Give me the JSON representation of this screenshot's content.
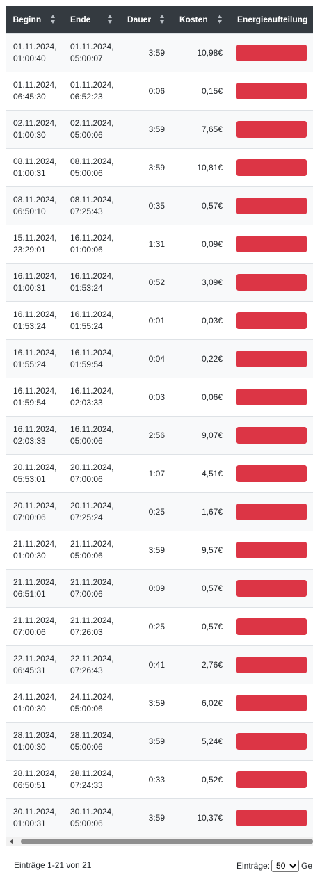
{
  "table": {
    "headers": {
      "beginn": "Beginn",
      "ende": "Ende",
      "dauer": "Dauer",
      "kosten": "Kosten",
      "energie": "Energieaufteilung"
    },
    "rows": [
      {
        "beginn": "01.11.2024, 01:00:40",
        "ende": "01.11.2024, 05:00:07",
        "dauer": "3:59",
        "kosten": "10,98€"
      },
      {
        "beginn": "01.11.2024, 06:45:30",
        "ende": "01.11.2024, 06:52:23",
        "dauer": "0:06",
        "kosten": "0,15€"
      },
      {
        "beginn": "02.11.2024, 01:00:30",
        "ende": "02.11.2024, 05:00:06",
        "dauer": "3:59",
        "kosten": "7,65€"
      },
      {
        "beginn": "08.11.2024, 01:00:31",
        "ende": "08.11.2024, 05:00:06",
        "dauer": "3:59",
        "kosten": "10,81€"
      },
      {
        "beginn": "08.11.2024, 06:50:10",
        "ende": "08.11.2024, 07:25:43",
        "dauer": "0:35",
        "kosten": "0,57€"
      },
      {
        "beginn": "15.11.2024, 23:29:01",
        "ende": "16.11.2024, 01:00:06",
        "dauer": "1:31",
        "kosten": "0,09€"
      },
      {
        "beginn": "16.11.2024, 01:00:31",
        "ende": "16.11.2024, 01:53:24",
        "dauer": "0:52",
        "kosten": "3,09€"
      },
      {
        "beginn": "16.11.2024, 01:53:24",
        "ende": "16.11.2024, 01:55:24",
        "dauer": "0:01",
        "kosten": "0,03€"
      },
      {
        "beginn": "16.11.2024, 01:55:24",
        "ende": "16.11.2024, 01:59:54",
        "dauer": "0:04",
        "kosten": "0,22€"
      },
      {
        "beginn": "16.11.2024, 01:59:54",
        "ende": "16.11.2024, 02:03:33",
        "dauer": "0:03",
        "kosten": "0,06€"
      },
      {
        "beginn": "16.11.2024, 02:03:33",
        "ende": "16.11.2024, 05:00:06",
        "dauer": "2:56",
        "kosten": "9,07€"
      },
      {
        "beginn": "20.11.2024, 05:53:01",
        "ende": "20.11.2024, 07:00:06",
        "dauer": "1:07",
        "kosten": "4,51€"
      },
      {
        "beginn": "20.11.2024, 07:00:06",
        "ende": "20.11.2024, 07:25:24",
        "dauer": "0:25",
        "kosten": "1,67€"
      },
      {
        "beginn": "21.11.2024, 01:00:30",
        "ende": "21.11.2024, 05:00:06",
        "dauer": "3:59",
        "kosten": "9,57€"
      },
      {
        "beginn": "21.11.2024, 06:51:01",
        "ende": "21.11.2024, 07:00:06",
        "dauer": "0:09",
        "kosten": "0,57€"
      },
      {
        "beginn": "21.11.2024, 07:00:06",
        "ende": "21.11.2024, 07:26:03",
        "dauer": "0:25",
        "kosten": "0,57€"
      },
      {
        "beginn": "22.11.2024, 06:45:31",
        "ende": "22.11.2024, 07:26:43",
        "dauer": "0:41",
        "kosten": "2,76€"
      },
      {
        "beginn": "24.11.2024, 01:00:30",
        "ende": "24.11.2024, 05:00:06",
        "dauer": "3:59",
        "kosten": "6,02€"
      },
      {
        "beginn": "28.11.2024, 01:00:30",
        "ende": "28.11.2024, 05:00:06",
        "dauer": "3:59",
        "kosten": "5,24€"
      },
      {
        "beginn": "28.11.2024, 06:50:51",
        "ende": "28.11.2024, 07:24:33",
        "dauer": "0:33",
        "kosten": "0,52€"
      },
      {
        "beginn": "30.11.2024, 01:00:31",
        "ende": "30.11.2024, 05:00:06",
        "dauer": "3:59",
        "kosten": "10,37€"
      }
    ]
  },
  "energy_bar_color": "#dc3545",
  "footer": {
    "info": "Einträge 1-21 von 21",
    "per_page_label": "Einträge:",
    "per_page_value": "50",
    "trailing_text": "Ge"
  }
}
